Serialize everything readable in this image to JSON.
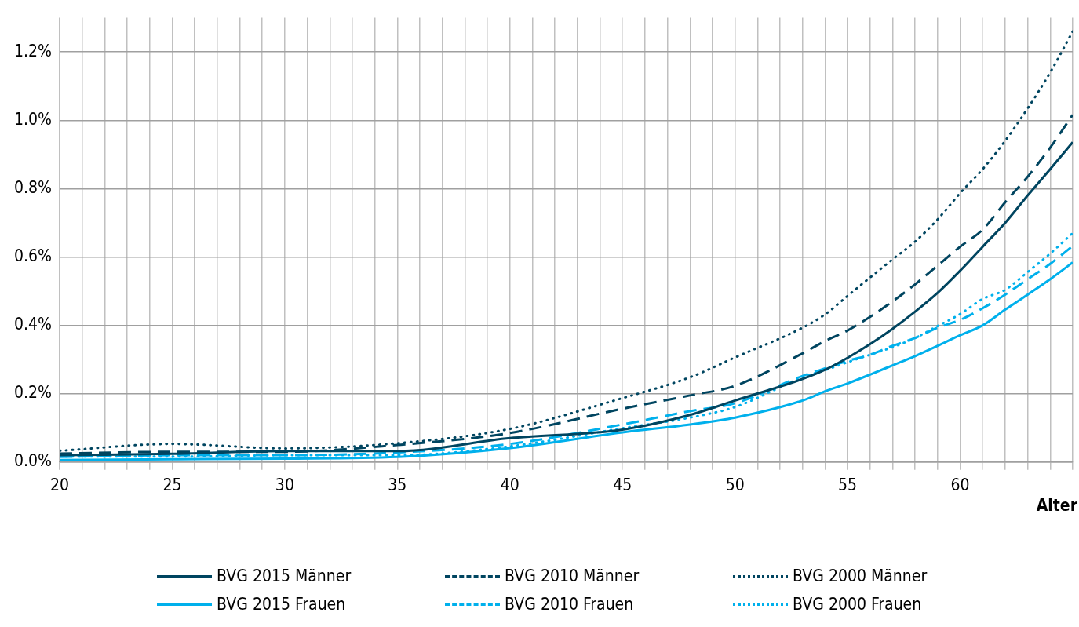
{
  "chart_data": {
    "type": "line",
    "xlabel": "Alter",
    "x": [
      20,
      25,
      30,
      35,
      40,
      45,
      48,
      50,
      53,
      54,
      55,
      56,
      57,
      58,
      59,
      60,
      61,
      62,
      63,
      64,
      65
    ],
    "series": [
      {
        "name": "BVG 2015 Männer",
        "color": "#004560",
        "line_style": "solid",
        "values": [
          0.02,
          0.024,
          0.032,
          0.032,
          0.07,
          0.095,
          0.138,
          0.18,
          0.243,
          0.27,
          0.305,
          0.345,
          0.39,
          0.44,
          0.495,
          0.56,
          0.63,
          0.7,
          0.78,
          0.857,
          0.936
        ]
      },
      {
        "name": "BVG 2010 Männer",
        "color": "#004560",
        "line_style": "dashed",
        "values": [
          0.025,
          0.03,
          0.03,
          0.05,
          0.085,
          0.156,
          0.195,
          0.223,
          0.318,
          0.354,
          0.385,
          0.425,
          0.47,
          0.52,
          0.575,
          0.63,
          0.68,
          0.76,
          0.835,
          0.92,
          1.016
        ]
      },
      {
        "name": "BVG 2000 Männer",
        "color": "#004560",
        "line_style": "dotted",
        "values": [
          0.033,
          0.053,
          0.04,
          0.055,
          0.097,
          0.187,
          0.248,
          0.306,
          0.393,
          0.432,
          0.486,
          0.54,
          0.593,
          0.645,
          0.71,
          0.787,
          0.857,
          0.94,
          1.035,
          1.14,
          1.26
        ]
      },
      {
        "name": "BVG 2015 Frauen",
        "color": "#00b0ec",
        "line_style": "solid",
        "values": [
          0.006,
          0.008,
          0.01,
          0.015,
          0.041,
          0.087,
          0.11,
          0.13,
          0.18,
          0.207,
          0.23,
          0.256,
          0.283,
          0.31,
          0.34,
          0.371,
          0.4,
          0.446,
          0.49,
          0.535,
          0.584
        ]
      },
      {
        "name": "BVG 2010 Frauen",
        "color": "#00b0ec",
        "line_style": "dashed",
        "values": [
          0.015,
          0.02,
          0.02,
          0.028,
          0.053,
          0.11,
          0.149,
          0.172,
          0.252,
          0.274,
          0.296,
          0.314,
          0.34,
          0.363,
          0.393,
          0.416,
          0.45,
          0.49,
          0.535,
          0.58,
          0.632
        ]
      },
      {
        "name": "BVG 2000 Frauen",
        "color": "#00b0ec",
        "line_style": "dotted",
        "values": [
          0.016,
          0.016,
          0.02,
          0.02,
          0.046,
          0.099,
          0.13,
          0.161,
          0.248,
          0.269,
          0.292,
          0.314,
          0.336,
          0.363,
          0.398,
          0.433,
          0.477,
          0.504,
          0.556,
          0.61,
          0.67
        ]
      }
    ],
    "xlim": [
      20,
      65
    ],
    "xticks": [
      20,
      {
        "value": 21,
        "label": null
      },
      {
        "value": 22,
        "label": null
      },
      {
        "value": 23,
        "label": null
      },
      {
        "value": 24,
        "label": null
      },
      25,
      {
        "value": 26,
        "label": null
      },
      {
        "value": 27,
        "label": null
      },
      {
        "value": 28,
        "label": null
      },
      {
        "value": 29,
        "label": null
      },
      30,
      {
        "value": 31,
        "label": null
      },
      {
        "value": 32,
        "label": null
      },
      {
        "value": 33,
        "label": null
      },
      {
        "value": 34,
        "label": null
      },
      35,
      {
        "value": 36,
        "label": null
      },
      {
        "value": 37,
        "label": null
      },
      {
        "value": 38,
        "label": null
      },
      {
        "value": 39,
        "label": null
      },
      40,
      {
        "value": 41,
        "label": null
      },
      {
        "value": 42,
        "label": null
      },
      {
        "value": 43,
        "label": null
      },
      {
        "value": 44,
        "label": null
      },
      45,
      {
        "value": 46,
        "label": null
      },
      {
        "value": 47,
        "label": null
      },
      {
        "value": 48,
        "label": null
      },
      {
        "value": 49,
        "label": null
      },
      50,
      {
        "value": 51,
        "label": null
      },
      {
        "value": 52,
        "label": null
      },
      {
        "value": 53,
        "label": null
      },
      {
        "value": 54,
        "label": null
      },
      55,
      {
        "value": 56,
        "label": null
      },
      {
        "value": 57,
        "label": null
      },
      {
        "value": 58,
        "label": null
      },
      {
        "value": 59,
        "label": null
      },
      60,
      {
        "value": 61,
        "label": null
      },
      {
        "value": 62,
        "label": null
      },
      {
        "value": 63,
        "label": null
      },
      {
        "value": 64,
        "label": null
      },
      {
        "value": 65,
        "label": null
      }
    ],
    "ylim": [
      0,
      1.3
    ],
    "yticks": [
      {
        "value": 0,
        "label": "0.0%"
      },
      {
        "value": 0.2,
        "label": "0.2%"
      },
      {
        "value": 0.4,
        "label": "0.4%"
      },
      {
        "value": 0.6,
        "label": "0.6%"
      },
      {
        "value": 0.8,
        "label": "0.8%"
      },
      {
        "value": 1.0,
        "label": "1.0%"
      },
      {
        "value": 1.2,
        "label": "1.2%"
      }
    ],
    "grid": true,
    "legend": "bottom",
    "marker": "none"
  }
}
